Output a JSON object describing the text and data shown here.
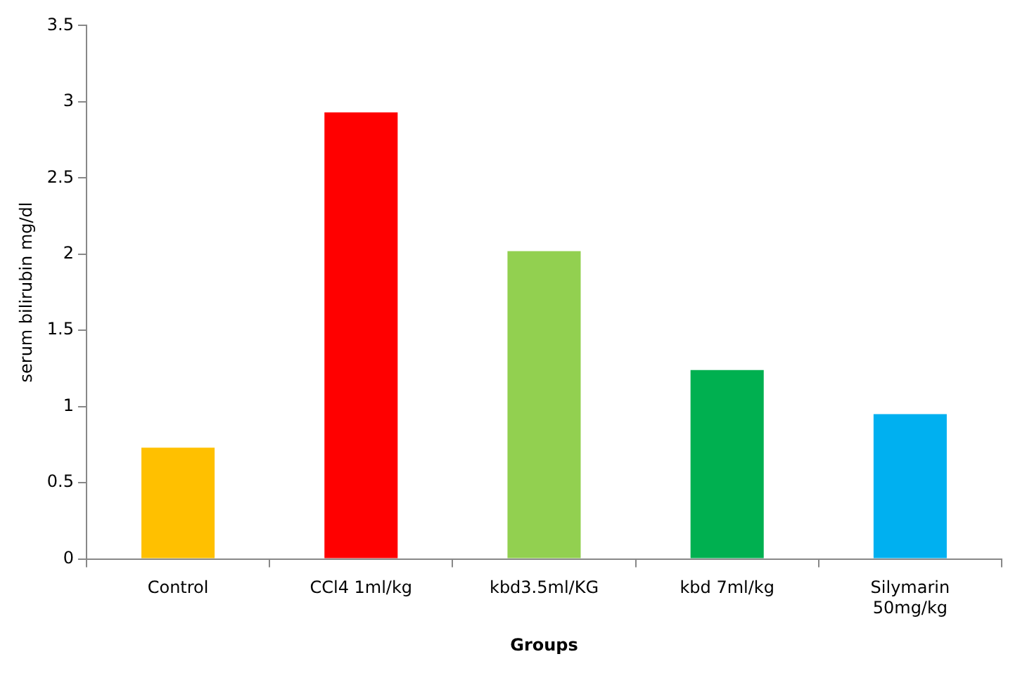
{
  "chart_data": {
    "type": "bar",
    "xlabel": "Groups",
    "ylabel": "serum bilirubin mg/dl",
    "categories": [
      "Control",
      "CCl4 1ml/kg",
      "kbd3.5ml/KG",
      "kbd 7ml/kg",
      "Silymarin 50mg/kg"
    ],
    "values": [
      0.73,
      2.93,
      2.02,
      1.24,
      0.95
    ],
    "colors": [
      "#ffc000",
      "#ff0000",
      "#92d050",
      "#00b050",
      "#00b0f0"
    ],
    "ylim": [
      0,
      3.5
    ],
    "yticks": [
      0,
      0.5,
      1,
      1.5,
      2,
      2.5,
      3,
      3.5
    ],
    "grid": false,
    "legend": false
  }
}
